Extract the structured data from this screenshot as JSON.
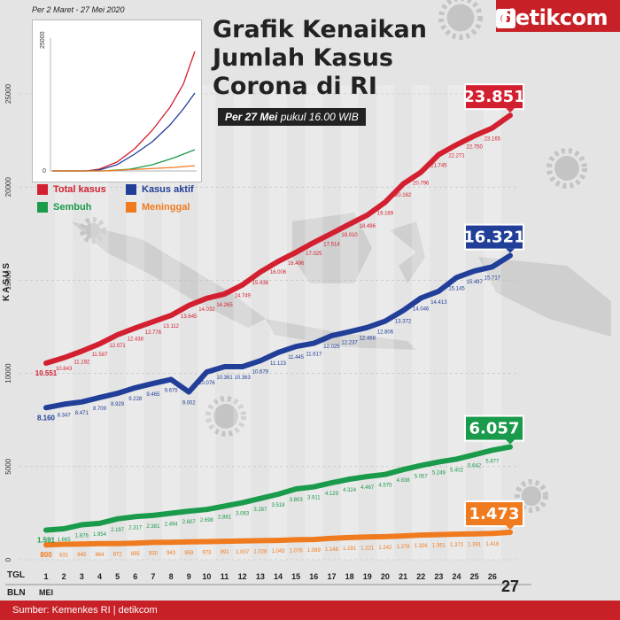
{
  "brand": {
    "name": "detikcom",
    "badge": "d"
  },
  "header": {
    "title_lines": [
      "Grafik Kenaikan",
      "Jumlah Kasus",
      "Corona di RI"
    ],
    "subtitle_bold": "Per 27 Mei",
    "subtitle_rest": " pukul 16.00 WIB"
  },
  "footer": {
    "source": "Sumber: Kemenkes RI | detikcom"
  },
  "legend": {
    "items": [
      {
        "label": "Total kasus",
        "color": "#d32030"
      },
      {
        "label": "Kasus aktif",
        "color": "#213e99"
      },
      {
        "label": "Sembuh",
        "color": "#1a9a4b"
      },
      {
        "label": "Meninggal",
        "color": "#f07a1e"
      }
    ]
  },
  "axis": {
    "ylabel": "KASUS",
    "tgl_label": "TGL",
    "bln_label": "BLN",
    "month": "MEI"
  },
  "inset": {
    "label": "Per 2 Maret - 27 Mei 2020",
    "ymax_label": "25000",
    "ymin_label": "0"
  },
  "chart_data": {
    "type": "line",
    "ylabel": "KASUS",
    "ylim": [
      0,
      25000
    ],
    "yticks": [
      0,
      5000,
      10000,
      15000,
      20000,
      25000
    ],
    "x": [
      1,
      2,
      3,
      4,
      5,
      6,
      7,
      8,
      9,
      10,
      11,
      12,
      13,
      14,
      15,
      16,
      17,
      18,
      19,
      20,
      21,
      22,
      23,
      24,
      25,
      26,
      27
    ],
    "series": [
      {
        "name": "Total kasus",
        "color": "#d32030",
        "values": [
          10551,
          10843,
          11192,
          11587,
          12071,
          12438,
          12776,
          13112,
          13645,
          14032,
          14265,
          14749,
          15438,
          16006,
          16496,
          17025,
          17514,
          18010,
          18496,
          19189,
          20162,
          20796,
          21745,
          22271,
          22750,
          23165,
          23851
        ],
        "labels": [
          "10.551",
          "10.843",
          "11.192",
          "11.587",
          "12.071",
          "12.438",
          "12.776",
          "13.112",
          "13.645",
          "14.032",
          "14.265",
          "14.749",
          "15.438",
          "16.006",
          "16.496",
          "17.025",
          "17.514",
          "18.010",
          "18.496",
          "19.189",
          "20.162",
          "20.796",
          "21.745",
          "22.271",
          "22.750",
          "23.165",
          "23.851"
        ]
      },
      {
        "name": "Kasus aktif",
        "color": "#213e99",
        "values": [
          8160,
          8347,
          8471,
          8709,
          8929,
          9228,
          9465,
          9675,
          9002,
          10076,
          10361,
          10363,
          10679,
          11123,
          11445,
          11617,
          12025,
          12237,
          12468,
          12806,
          13372,
          14046,
          14413,
          15145,
          15497,
          15717,
          16321
        ],
        "labels": [
          "8.160",
          "8.347",
          "8.471",
          "8.709",
          "8.929",
          "9.228",
          "9.465",
          "9.675",
          "9.002",
          "10.076",
          "10.361",
          "10.363",
          "10.679",
          "11.123",
          "11.445",
          "11.617",
          "12.025",
          "12.237",
          "12.468",
          "12.806",
          "13.372",
          "14.046",
          "14.413",
          "15.145",
          "15.497",
          "15.717",
          "16.321"
        ]
      },
      {
        "name": "Sembuh",
        "color": "#1a9a4b",
        "values": [
          1591,
          1665,
          1876,
          1954,
          2197,
          2317,
          2381,
          2494,
          2607,
          2698,
          2881,
          3063,
          3287,
          3518,
          3803,
          3911,
          4129,
          4324,
          4467,
          4575,
          4838,
          5057,
          5249,
          5402,
          5642,
          5877,
          6057
        ],
        "labels": [
          "1.591",
          "1.665",
          "1.876",
          "1.954",
          "2.197",
          "2.317",
          "2.381",
          "2.494",
          "2.607",
          "2.698",
          "2.881",
          "3.063",
          "3.287",
          "3.518",
          "3.803",
          "3.911",
          "4.129",
          "4.324",
          "4.467",
          "4.575",
          "4.838",
          "5.057",
          "5.249",
          "5.402",
          "5.642",
          "5.877",
          "6.057"
        ]
      },
      {
        "name": "Meninggal",
        "color": "#f07a1e",
        "values": [
          800,
          831,
          845,
          864,
          872,
          895,
          930,
          943,
          959,
          973,
          991,
          1007,
          1028,
          1043,
          1076,
          1089,
          1148,
          1191,
          1221,
          1242,
          1278,
          1326,
          1351,
          1372,
          1391,
          1418,
          1473
        ],
        "labels": [
          "800",
          "831",
          "845",
          "864",
          "872",
          "895",
          "930",
          "943",
          "959",
          "973",
          "991",
          "1.007",
          "1.028",
          "1.043",
          "1.076",
          "1.089",
          "1.148",
          "1.191",
          "1.221",
          "1.242",
          "1.278",
          "1.326",
          "1.351",
          "1.372",
          "1.391",
          "1.418",
          "1.473"
        ]
      }
    ],
    "final_callouts": [
      "23.851",
      "16.321",
      "6.057",
      "1.473"
    ]
  }
}
